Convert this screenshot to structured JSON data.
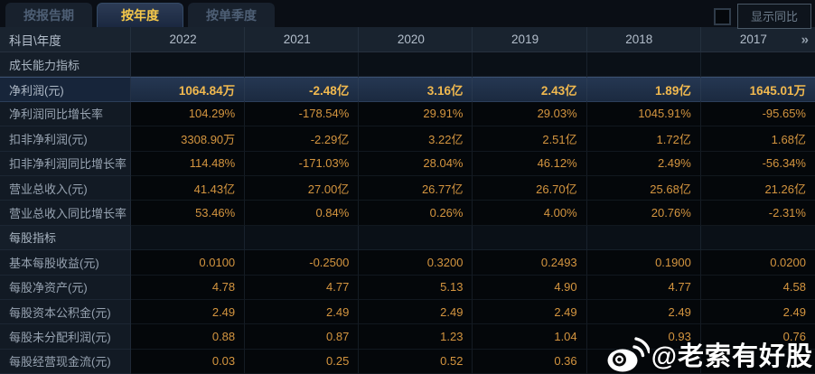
{
  "tabs": [
    {
      "label": "按报告期",
      "active": false
    },
    {
      "label": "按年度",
      "active": true
    },
    {
      "label": "按单季度",
      "active": false
    }
  ],
  "controls": {
    "show_yoy_label": "显示同比",
    "yoy_checkbox_checked": false
  },
  "table": {
    "corner_header": "科目\\年度",
    "years": [
      "2022",
      "2021",
      "2020",
      "2019",
      "2018",
      "2017"
    ],
    "more_icon": "»",
    "rows": [
      {
        "type": "section",
        "label": "成长能力指标",
        "values": [
          "",
          "",
          "",
          "",
          "",
          ""
        ]
      },
      {
        "type": "highlight",
        "label": "净利润(元)",
        "values": [
          "1064.84万",
          "-2.48亿",
          "3.16亿",
          "2.43亿",
          "1.89亿",
          "1645.01万"
        ]
      },
      {
        "type": "data",
        "label": "净利润同比增长率",
        "values": [
          "104.29%",
          "-178.54%",
          "29.91%",
          "29.03%",
          "1045.91%",
          "-95.65%"
        ]
      },
      {
        "type": "data",
        "label": "扣非净利润(元)",
        "values": [
          "3308.90万",
          "-2.29亿",
          "3.22亿",
          "2.51亿",
          "1.72亿",
          "1.68亿"
        ]
      },
      {
        "type": "data",
        "label": "扣非净利润同比增长率",
        "values": [
          "114.48%",
          "-171.03%",
          "28.04%",
          "46.12%",
          "2.49%",
          "-56.34%"
        ]
      },
      {
        "type": "data",
        "label": "营业总收入(元)",
        "values": [
          "41.43亿",
          "27.00亿",
          "26.77亿",
          "26.70亿",
          "25.68亿",
          "21.26亿"
        ]
      },
      {
        "type": "data",
        "label": "营业总收入同比增长率",
        "values": [
          "53.46%",
          "0.84%",
          "0.26%",
          "4.00%",
          "20.76%",
          "-2.31%"
        ]
      },
      {
        "type": "section",
        "label": "每股指标",
        "values": [
          "",
          "",
          "",
          "",
          "",
          ""
        ]
      },
      {
        "type": "data",
        "label": "基本每股收益(元)",
        "values": [
          "0.0100",
          "-0.2500",
          "0.3200",
          "0.2493",
          "0.1900",
          "0.0200"
        ]
      },
      {
        "type": "data",
        "label": "每股净资产(元)",
        "values": [
          "4.78",
          "4.77",
          "5.13",
          "4.90",
          "4.77",
          "4.58"
        ]
      },
      {
        "type": "data",
        "label": "每股资本公积金(元)",
        "values": [
          "2.49",
          "2.49",
          "2.49",
          "2.49",
          "2.49",
          "2.49"
        ]
      },
      {
        "type": "data",
        "label": "每股未分配利润(元)",
        "values": [
          "0.88",
          "0.87",
          "1.23",
          "1.04",
          "0.93",
          "0.76"
        ]
      },
      {
        "type": "data",
        "label": "每股经营现金流(元)",
        "values": [
          "0.03",
          "0.25",
          "0.52",
          "0.36",
          "",
          ""
        ]
      }
    ]
  },
  "watermark": {
    "icon": "weibo-icon",
    "text": "@老索有好股"
  },
  "colors": {
    "accent_gold": "#f6c94b",
    "value_amber": "#d4953f",
    "highlight_row_bg": "#1e2d44",
    "header_bg": "#19232f",
    "label_col_bg": "#121a24",
    "page_bg": "#070b10"
  }
}
